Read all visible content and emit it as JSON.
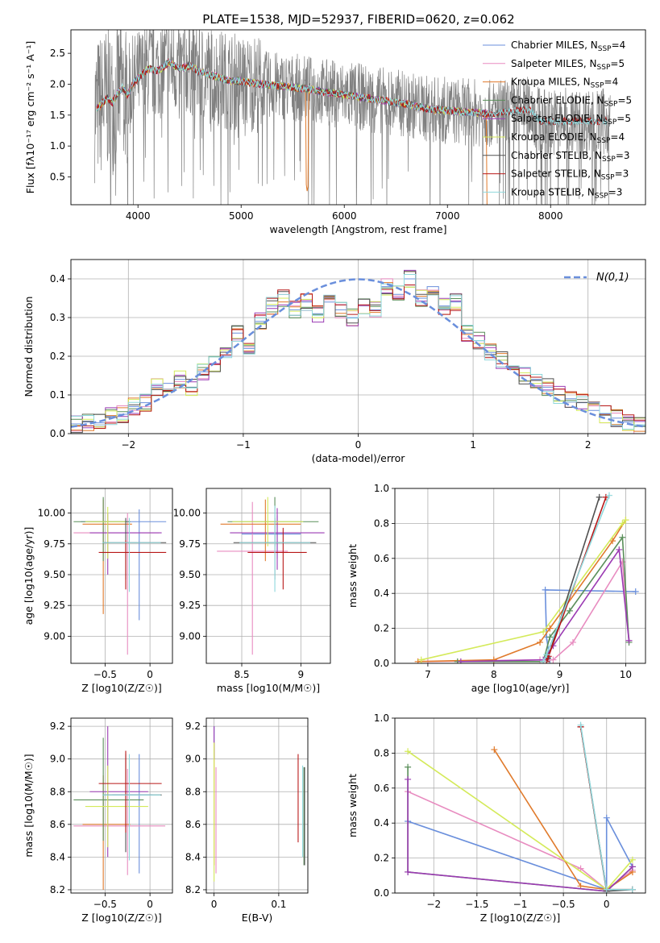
{
  "title": "PLATE=1538, MJD=52937, FIBERID=0620, z=0.062",
  "colors": [
    "#6a8fdc",
    "#e88cc0",
    "#e07a2b",
    "#5a8f5a",
    "#9b3bb3",
    "#d4ea5a",
    "#505050",
    "#b81818",
    "#8fd8dc"
  ],
  "chart_data": [
    {
      "id": "spectrum",
      "type": "line",
      "xlabel": "wavelength [Angstrom, rest frame]",
      "ylabel": "Flux [fλ10⁻¹⁷ erg cm⁻² s⁻¹ A⁻¹]",
      "xlim": [
        3350,
        8920
      ],
      "ylim": [
        0.05,
        2.88
      ],
      "xticks": [
        4000,
        5000,
        6000,
        7000,
        8000
      ],
      "yticks": [
        0.5,
        1.0,
        1.5,
        2.0,
        2.5
      ],
      "grid": false,
      "legend_position": "top-right",
      "data_color": "#808080",
      "continuum": {
        "x": [
          3600,
          3650,
          3700,
          3750,
          3800,
          3850,
          3900,
          3950,
          4000,
          4100,
          4200,
          4300,
          4400,
          4500,
          4600,
          4700,
          4800,
          4900,
          5000,
          5200,
          5400,
          5600,
          5800,
          6000,
          6200,
          6400,
          6600,
          6800,
          7000,
          7200,
          7400,
          7600,
          7800,
          7900
        ],
        "y": [
          1.6,
          1.68,
          1.78,
          1.7,
          1.85,
          1.95,
          1.82,
          2.0,
          2.1,
          2.25,
          2.22,
          2.35,
          2.25,
          2.3,
          2.2,
          2.15,
          2.1,
          2.05,
          2.05,
          2.0,
          1.97,
          1.93,
          1.88,
          1.83,
          1.78,
          1.73,
          1.68,
          1.6,
          1.57,
          1.55,
          1.52,
          1.55,
          1.6,
          1.4
        ]
      },
      "data_bounds": [
        3580,
        8580
      ],
      "series": [
        {
          "name": "Chabrier MILES, N_SSP=4",
          "label_main": "Chabrier MILES, N",
          "label_sub": "SSP",
          "label_end": "=4"
        },
        {
          "name": "Salpeter MILES, N_SSP=5",
          "label_main": "Salpeter MILES, N",
          "label_sub": "SSP",
          "label_end": "=5"
        },
        {
          "name": "Kroupa MILES, N_SSP=4",
          "label_main": "Kroupa MILES, N",
          "label_sub": "SSP",
          "label_end": "=4"
        },
        {
          "name": "Chabrier ELODIE, N_SSP=5",
          "label_main": "Chabrier ELODIE, N",
          "label_sub": "SSP",
          "label_end": "=5"
        },
        {
          "name": "Salpeter ELODIE, N_SSP=5",
          "label_main": "Salpeter ELODIE, N",
          "label_sub": "SSP",
          "label_end": "=5"
        },
        {
          "name": "Kroupa ELODIE, N_SSP=4",
          "label_main": "Kroupa ELODIE, N",
          "label_sub": "SSP",
          "label_end": "=4"
        },
        {
          "name": "Chabrier STELIB, N_SSP=3",
          "label_main": "Chabrier STELIB, N",
          "label_sub": "SSP",
          "label_end": "=3"
        },
        {
          "name": "Salpeter STELIB, N_SSP=3",
          "label_main": "Salpeter STELIB, N",
          "label_sub": "SSP",
          "label_end": "=3"
        },
        {
          "name": "Kroupa STELIB, N_SSP=3",
          "label_main": "Kroupa STELIB, N",
          "label_sub": "SSP",
          "label_end": "=3"
        }
      ]
    },
    {
      "id": "residuals",
      "type": "line",
      "xlabel": "(data-model)/error",
      "ylabel": "Normed distribution",
      "xlim": [
        -2.5,
        2.5
      ],
      "ylim": [
        0.0,
        0.45
      ],
      "xticks": [
        -2,
        -1,
        0,
        1,
        2
      ],
      "yticks": [
        0.0,
        0.1,
        0.2,
        0.3,
        0.4
      ],
      "grid": true,
      "legend_position": "top-right",
      "normal_curve": {
        "name": "N(0,1)",
        "mean": 0,
        "sigma": 1,
        "color": "#6a8fdc"
      },
      "bin_centers": [
        -2.45,
        -2.35,
        -2.25,
        -2.15,
        -2.05,
        -1.95,
        -1.85,
        -1.75,
        -1.65,
        -1.55,
        -1.45,
        -1.35,
        -1.25,
        -1.15,
        -1.05,
        -0.95,
        -0.85,
        -0.75,
        -0.65,
        -0.55,
        -0.45,
        -0.35,
        -0.25,
        -0.15,
        -0.05,
        0.05,
        0.15,
        0.25,
        0.35,
        0.45,
        0.55,
        0.65,
        0.75,
        0.85,
        0.95,
        1.05,
        1.15,
        1.25,
        1.35,
        1.45,
        1.55,
        1.65,
        1.75,
        1.85,
        1.95,
        2.05,
        2.15,
        2.25,
        2.35,
        2.45
      ],
      "histogram": [
        0.025,
        0.03,
        0.028,
        0.045,
        0.05,
        0.07,
        0.08,
        0.12,
        0.13,
        0.14,
        0.12,
        0.16,
        0.18,
        0.2,
        0.26,
        0.22,
        0.29,
        0.33,
        0.35,
        0.32,
        0.34,
        0.31,
        0.34,
        0.32,
        0.3,
        0.33,
        0.32,
        0.38,
        0.36,
        0.4,
        0.35,
        0.38,
        0.33,
        0.34,
        0.26,
        0.24,
        0.21,
        0.19,
        0.17,
        0.15,
        0.14,
        0.12,
        0.1,
        0.09,
        0.08,
        0.06,
        0.05,
        0.04,
        0.03,
        0.02
      ]
    },
    {
      "id": "z_vs_age",
      "type": "scatter",
      "xlabel": "Z [log10(Z/Z☉)]",
      "ylabel": "age  [log10(age/yr)]",
      "xlim": [
        -0.88,
        0.25
      ],
      "ylim": [
        8.78,
        10.2
      ],
      "xticks": [
        -0.5,
        0.0
      ],
      "yticks": [
        9.0,
        9.25,
        9.5,
        9.75,
        10.0
      ],
      "grid": true,
      "points": [
        {
          "x": -0.12,
          "y": 9.93,
          "xerr": [
            0.65,
            0.3
          ],
          "yerr": [
            0.8,
            0.1
          ]
        },
        {
          "x": -0.25,
          "y": 9.84,
          "xerr": [
            0.6,
            0.35
          ],
          "yerr": [
            0.99,
            0.16
          ]
        },
        {
          "x": -0.52,
          "y": 9.91,
          "xerr": [
            0.23,
            0.32
          ],
          "yerr": [
            0.73,
            0.2
          ]
        },
        {
          "x": -0.52,
          "y": 9.93,
          "xerr": [
            0.33,
            0.3
          ],
          "yerr": [
            0.32,
            0.2
          ]
        },
        {
          "x": -0.47,
          "y": 9.84,
          "xerr": [
            0.2,
            0.6
          ],
          "yerr": [
            0.34,
            0.16
          ]
        },
        {
          "x": -0.47,
          "y": 9.93,
          "xerr": [
            0.25,
            0.2
          ],
          "yerr": [
            0.3,
            0.12
          ]
        },
        {
          "x": -0.27,
          "y": 9.76,
          "xerr": [
            0.25,
            0.45
          ],
          "yerr": [
            0.3,
            0.2
          ]
        },
        {
          "x": -0.27,
          "y": 9.68,
          "xerr": [
            0.3,
            0.45
          ],
          "yerr": [
            0.3,
            0.1
          ]
        },
        {
          "x": -0.23,
          "y": 9.76,
          "xerr": [
            0.3,
            0.35
          ],
          "yerr": [
            0.4,
            0.2
          ]
        }
      ]
    },
    {
      "id": "mass_vs_age",
      "type": "scatter",
      "xlabel": "mass [log10(M/M☉)]",
      "ylabel": "",
      "xlim": [
        8.2,
        9.25
      ],
      "ylim": [
        8.78,
        10.2
      ],
      "xticks": [
        8.5,
        9.0
      ],
      "yticks": [
        9.0,
        9.25,
        9.5,
        9.75,
        10.0
      ],
      "grid": true,
      "points": [
        {
          "x": 8.8,
          "y": 9.83,
          "xerr": [
            0.3,
            0.2
          ],
          "yerr": [
            0.2,
            0.15
          ]
        },
        {
          "x": 8.59,
          "y": 9.69,
          "xerr": [
            0.3,
            0.3
          ],
          "yerr": [
            0.84,
            0.4
          ]
        },
        {
          "x": 8.7,
          "y": 9.91,
          "xerr": [
            0.38,
            0.3
          ],
          "yerr": [
            0.3,
            0.2
          ]
        },
        {
          "x": 8.78,
          "y": 9.93,
          "xerr": [
            0.4,
            0.37
          ],
          "yerr": [
            0.2,
            0.2
          ]
        },
        {
          "x": 8.8,
          "y": 9.84,
          "xerr": [
            0.4,
            0.4
          ],
          "yerr": [
            0.3,
            0.2
          ]
        },
        {
          "x": 8.72,
          "y": 9.93,
          "xerr": [
            0.3,
            0.3
          ],
          "yerr": [
            0.2,
            0.2
          ]
        },
        {
          "x": 8.78,
          "y": 9.76,
          "xerr": [
            0.35,
            0.35
          ],
          "yerr": [
            0.3,
            0.2
          ]
        },
        {
          "x": 8.85,
          "y": 9.68,
          "xerr": [
            0.3,
            0.2
          ],
          "yerr": [
            0.3,
            0.2
          ]
        },
        {
          "x": 8.78,
          "y": 9.76,
          "xerr": [
            0.3,
            0.3
          ],
          "yerr": [
            0.4,
            0.3
          ]
        }
      ]
    },
    {
      "id": "age_vs_weight",
      "type": "line",
      "xlabel": "age  [log10(age/yr)]",
      "ylabel": "mass weight",
      "xlim": [
        6.5,
        10.3
      ],
      "ylim": [
        0.0,
        1.0
      ],
      "xticks": [
        7,
        8,
        9,
        10
      ],
      "yticks": [
        0.0,
        0.2,
        0.4,
        0.6,
        0.8,
        1.0
      ],
      "grid": true,
      "series": [
        {
          "x": [
            8.85,
            8.8,
            8.78,
            10.15
          ],
          "y": [
            0.02,
            0.15,
            0.42,
            0.41
          ]
        },
        {
          "x": [
            7.0,
            8.7,
            8.9,
            9.2,
            9.95,
            10.05
          ],
          "y": [
            0.01,
            0.02,
            0.02,
            0.12,
            0.58,
            0.13
          ]
        },
        {
          "x": [
            6.85,
            8.0,
            8.7,
            8.85,
            9.8,
            10.0
          ],
          "y": [
            0.01,
            0.02,
            0.12,
            0.2,
            0.7,
            0.82
          ]
        },
        {
          "x": [
            7.45,
            8.75,
            8.85,
            9.15,
            9.95,
            10.05
          ],
          "y": [
            0.01,
            0.01,
            0.15,
            0.3,
            0.72,
            0.12
          ]
        },
        {
          "x": [
            7.5,
            8.75,
            8.9,
            9.9,
            10.05
          ],
          "y": [
            0.01,
            0.02,
            0.1,
            0.65,
            0.13
          ]
        },
        {
          "x": [
            6.9,
            8.75,
            9.95,
            10.0
          ],
          "y": [
            0.02,
            0.18,
            0.8,
            0.82
          ]
        },
        {
          "x": [
            8.8,
            8.82,
            9.6
          ],
          "y": [
            0.01,
            0.03,
            0.95
          ]
        },
        {
          "x": [
            8.8,
            8.83,
            9.7
          ],
          "y": [
            0.01,
            0.04,
            0.95
          ]
        },
        {
          "x": [
            8.75,
            8.8,
            9.75
          ],
          "y": [
            0.01,
            0.05,
            0.96
          ]
        }
      ]
    },
    {
      "id": "z_vs_mass",
      "type": "scatter",
      "xlabel": "Z [log10(Z/Z☉)]",
      "ylabel": "mass [log10(M/M☉)]",
      "xlim": [
        -0.88,
        0.25
      ],
      "ylim": [
        8.18,
        9.25
      ],
      "xticks": [
        -0.5,
        0.0
      ],
      "yticks": [
        8.2,
        8.4,
        8.6,
        8.8,
        9.0,
        9.2
      ],
      "grid": true,
      "points": [
        {
          "x": -0.12,
          "y": 8.78,
          "xerr": [
            0.3,
            0.15
          ],
          "yerr": [
            0.48,
            0.25
          ]
        },
        {
          "x": -0.25,
          "y": 8.59,
          "xerr": [
            0.6,
            0.42
          ],
          "yerr": [
            0.3,
            0.35
          ]
        },
        {
          "x": -0.52,
          "y": 8.6,
          "xerr": [
            0.23,
            0.3
          ],
          "yerr": [
            0.4,
            0.3
          ]
        },
        {
          "x": -0.52,
          "y": 8.75,
          "xerr": [
            0.33,
            0.45
          ],
          "yerr": [
            0.25,
            0.38
          ]
        },
        {
          "x": -0.47,
          "y": 8.8,
          "xerr": [
            0.2,
            0.45
          ],
          "yerr": [
            0.4,
            0.4
          ]
        },
        {
          "x": -0.47,
          "y": 8.71,
          "xerr": [
            0.25,
            0.45
          ],
          "yerr": [
            0.25,
            0.25
          ]
        },
        {
          "x": -0.27,
          "y": 8.78,
          "xerr": [
            0.25,
            0.4
          ],
          "yerr": [
            0.35,
            0.25
          ]
        },
        {
          "x": -0.27,
          "y": 8.85,
          "xerr": [
            0.3,
            0.4
          ],
          "yerr": [
            0.3,
            0.2
          ]
        },
        {
          "x": -0.23,
          "y": 8.78,
          "xerr": [
            0.3,
            0.35
          ],
          "yerr": [
            0.4,
            0.25
          ]
        }
      ]
    },
    {
      "id": "ebv_vs_mass",
      "type": "scatter",
      "xlabel": "E(B-V)",
      "ylabel": "",
      "xlim": [
        -0.012,
        0.145
      ],
      "ylim": [
        8.18,
        9.25
      ],
      "xticks": [
        0.0,
        0.1
      ],
      "yticks": [
        8.2,
        8.4,
        8.6,
        8.8,
        9.0,
        9.2
      ],
      "grid": true,
      "points": [
        {
          "x": 0.0,
          "y": 9.1,
          "yerr": [
            0.1,
            0.1
          ]
        },
        {
          "x": 0.003,
          "y": 8.6,
          "yerr": [
            0.3,
            0.35
          ]
        },
        {
          "x": 0.0,
          "y": 8.7,
          "yerr": [
            0.35,
            0.4
          ]
        },
        {
          "x": 0.139,
          "y": 8.65,
          "yerr": [
            0.3,
            0.3
          ]
        },
        {
          "x": 0.0,
          "y": 9.1,
          "yerr": [
            0.1,
            0.1
          ]
        },
        {
          "x": 0.0,
          "y": 8.7,
          "yerr": [
            0.45,
            0.4
          ]
        },
        {
          "x": 0.14,
          "y": 8.65,
          "yerr": [
            0.3,
            0.3
          ]
        },
        {
          "x": 0.13,
          "y": 8.76,
          "yerr": [
            0.27,
            0.27
          ]
        },
        {
          "x": 0.137,
          "y": 8.7,
          "yerr": [
            0.3,
            0.26
          ]
        }
      ]
    },
    {
      "id": "z_vs_weight",
      "type": "line",
      "xlabel": "Z [log10(Z/Z☉)]",
      "ylabel": "mass weight",
      "xlim": [
        -2.45,
        0.45
      ],
      "ylim": [
        0.0,
        1.0
      ],
      "xticks": [
        -2.0,
        -1.5,
        -1.0,
        -0.5,
        0.0
      ],
      "yticks": [
        0.0,
        0.2,
        0.4,
        0.6,
        0.8,
        1.0
      ],
      "grid": true,
      "series": [
        {
          "x": [
            -2.3,
            0.0,
            0.0,
            0.3
          ],
          "y": [
            0.41,
            0.02,
            0.43,
            0.15
          ]
        },
        {
          "x": [
            -2.3,
            -0.3,
            0.0,
            0.3
          ],
          "y": [
            0.58,
            0.14,
            0.02,
            0.13
          ]
        },
        {
          "x": [
            -1.3,
            -0.3,
            0.0,
            0.3
          ],
          "y": [
            0.82,
            0.04,
            0.02,
            0.12
          ]
        },
        {
          "x": [
            -2.3,
            -2.3,
            0.0,
            0.3
          ],
          "y": [
            0.72,
            0.12,
            0.01,
            0.15
          ]
        },
        {
          "x": [
            -2.3,
            -2.3,
            0.0,
            0.3
          ],
          "y": [
            0.65,
            0.12,
            0.01,
            0.15
          ]
        },
        {
          "x": [
            -2.3,
            0.0,
            0.3
          ],
          "y": [
            0.81,
            0.02,
            0.19
          ]
        },
        {
          "x": [
            -0.3,
            0.0,
            0.3
          ],
          "y": [
            0.95,
            0.01,
            0.02
          ]
        },
        {
          "x": [
            -0.3,
            0.0,
            0.3
          ],
          "y": [
            0.95,
            0.02,
            0.02
          ]
        },
        {
          "x": [
            -0.3,
            0.0,
            0.3
          ],
          "y": [
            0.96,
            0.02,
            0.02
          ]
        }
      ]
    }
  ]
}
